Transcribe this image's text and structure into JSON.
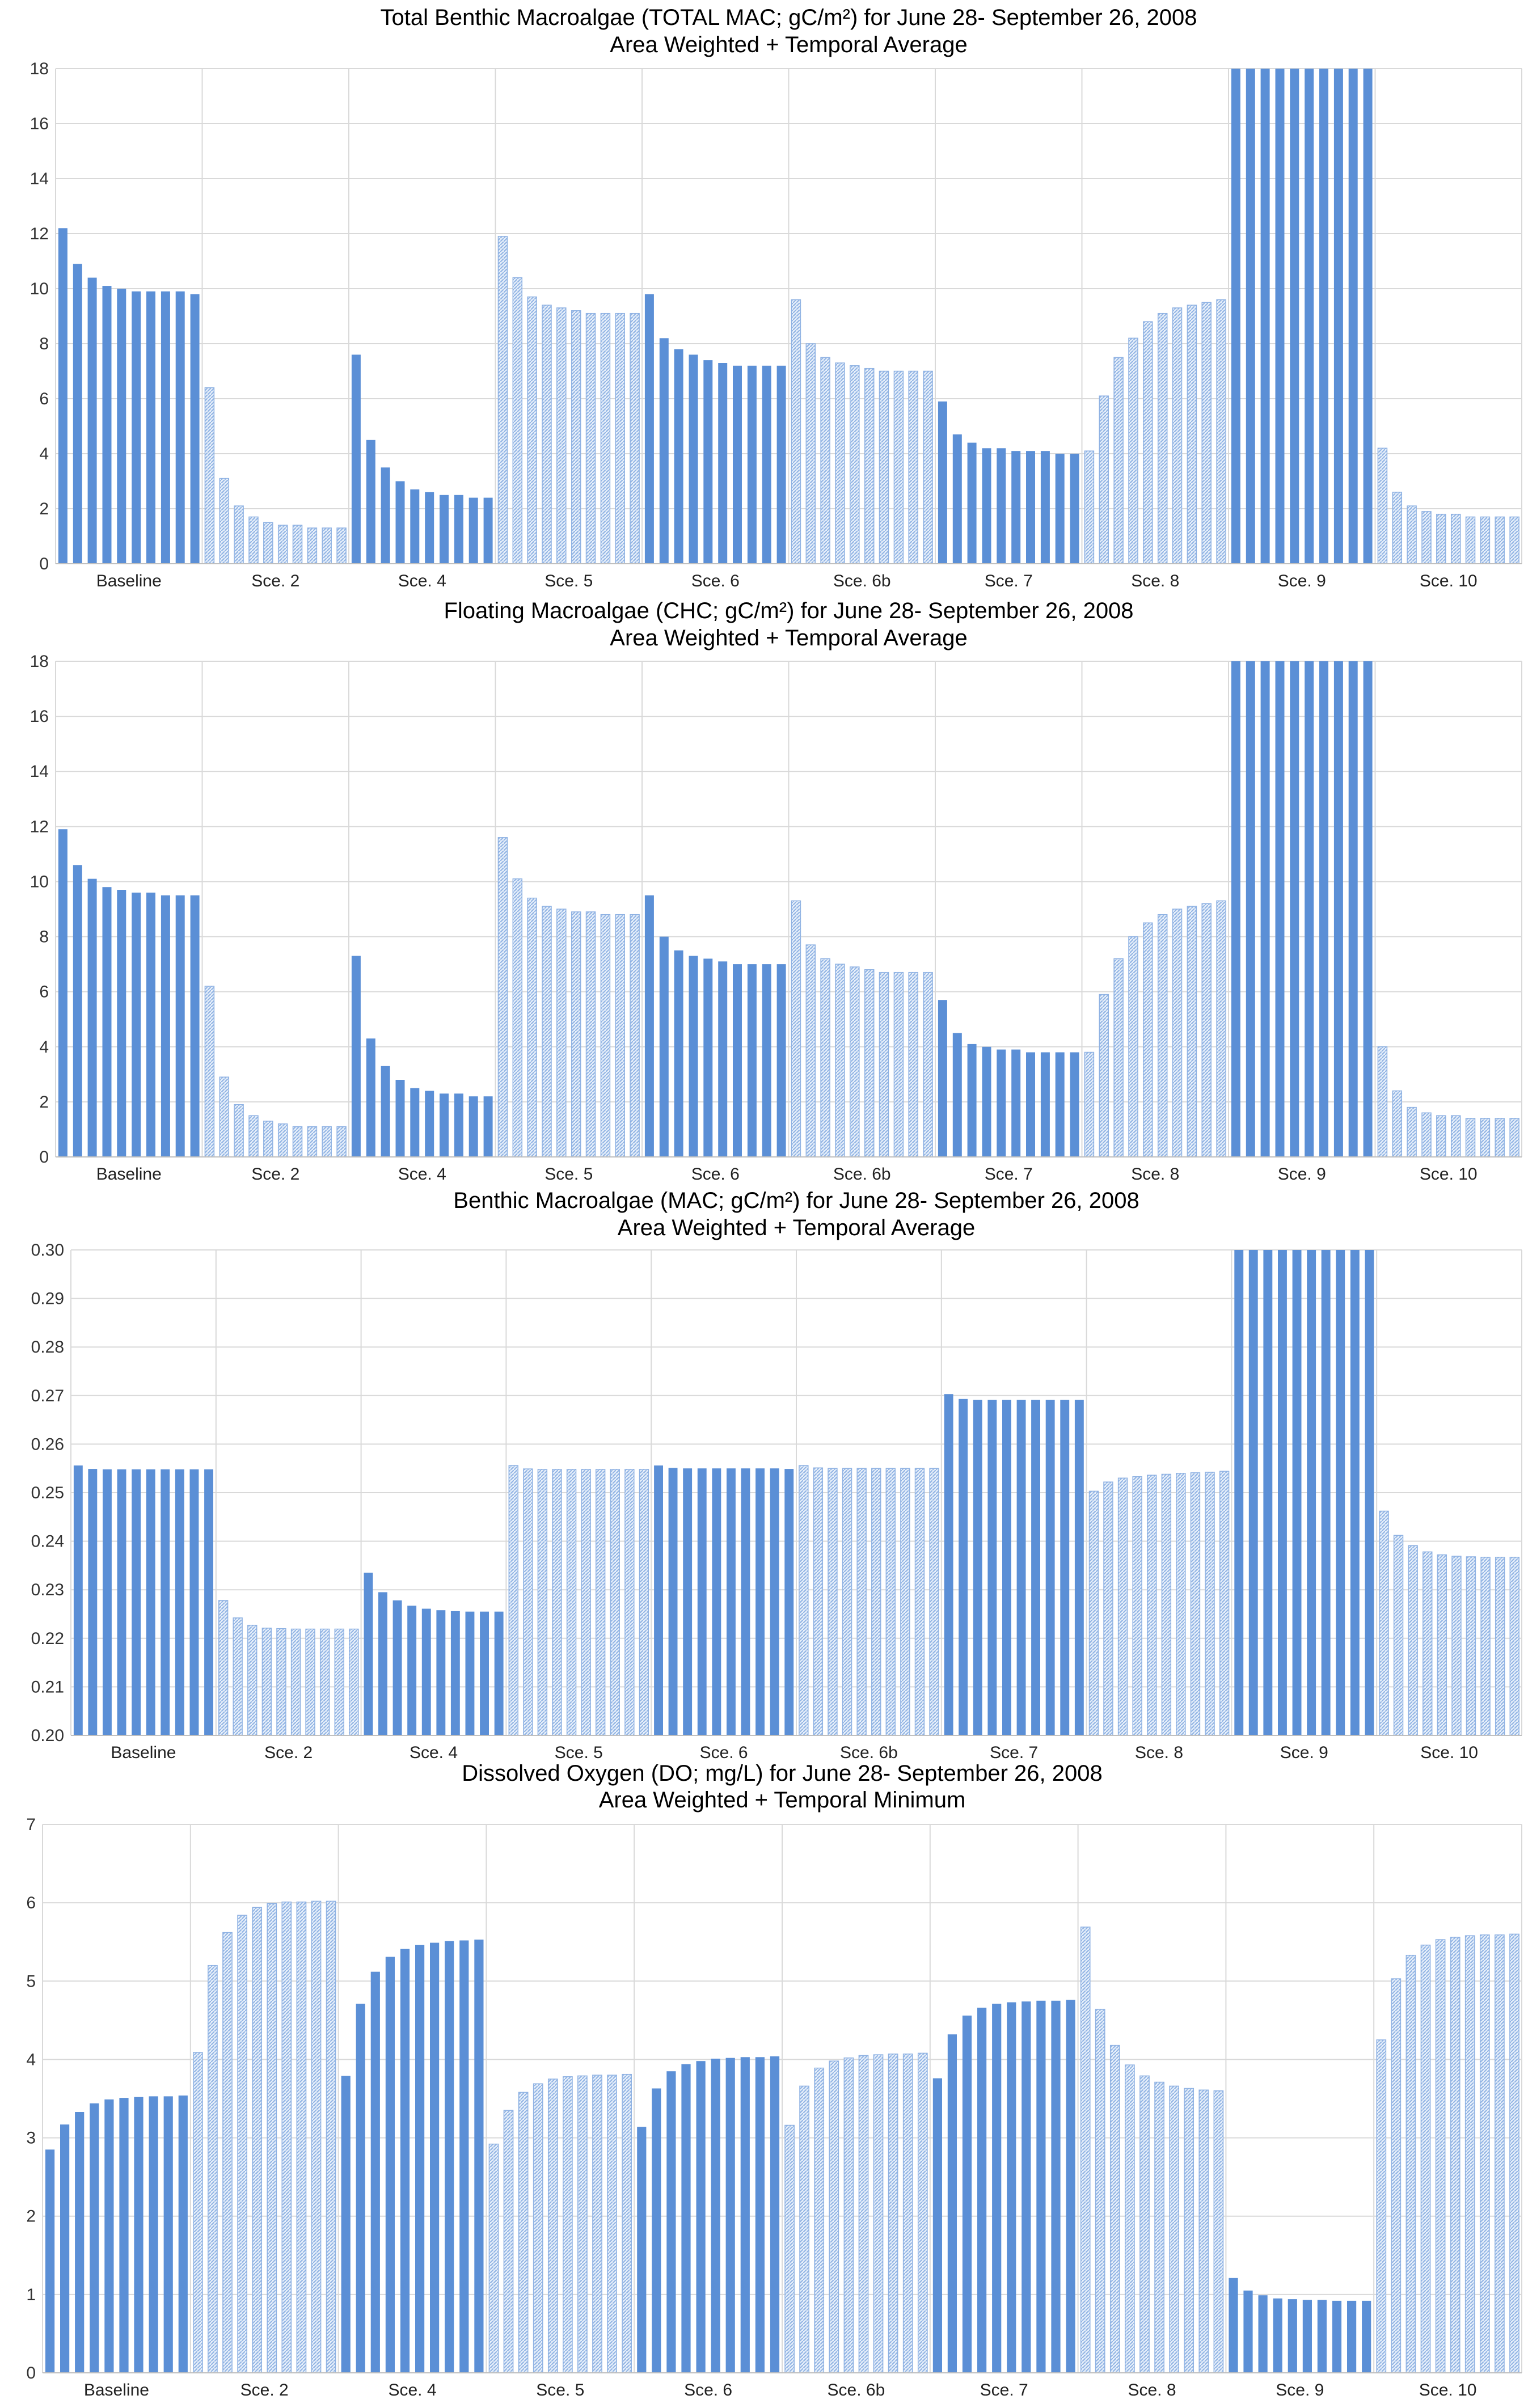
{
  "colors": {
    "solid": "#5b8fd6",
    "hatch": "#a9c6ec",
    "hatch_bg": "#e6effa",
    "grid": "#d9d9d9",
    "axis": "#bfbfbf"
  },
  "chart_data": [
    {
      "type": "bar",
      "title": "Total Benthic Macroalgae (TOTAL MAC; gC/m²) for June 28- September 26, 2008",
      "subtitle": "Area Weighted + Temporal Average",
      "ylim": [
        0,
        18
      ],
      "yticks": [
        "0",
        "2",
        "4",
        "6",
        "8",
        "10",
        "12",
        "14",
        "16",
        "18"
      ],
      "categories": [
        "Baseline",
        "Sce. 2",
        "Sce. 4",
        "Sce. 5",
        "Sce. 6",
        "Sce. 6b",
        "Sce. 7",
        "Sce. 8",
        "Sce. 9",
        "Sce. 10"
      ],
      "patterns": [
        "solid",
        "hatch",
        "solid",
        "hatch",
        "solid",
        "hatch",
        "solid",
        "hatch",
        "solid",
        "hatch"
      ],
      "groups": [
        [
          12.2,
          10.9,
          10.4,
          10.1,
          10.0,
          9.9,
          9.9,
          9.9,
          9.9,
          9.8
        ],
        [
          6.4,
          3.1,
          2.1,
          1.7,
          1.5,
          1.4,
          1.4,
          1.3,
          1.3,
          1.3
        ],
        [
          7.6,
          4.5,
          3.5,
          3.0,
          2.7,
          2.6,
          2.5,
          2.5,
          2.4,
          2.4
        ],
        [
          11.9,
          10.4,
          9.7,
          9.4,
          9.3,
          9.2,
          9.1,
          9.1,
          9.1,
          9.1
        ],
        [
          9.8,
          8.2,
          7.8,
          7.6,
          7.4,
          7.3,
          7.2,
          7.2,
          7.2,
          7.2
        ],
        [
          9.6,
          8.0,
          7.5,
          7.3,
          7.2,
          7.1,
          7.0,
          7.0,
          7.0,
          7.0
        ],
        [
          5.9,
          4.7,
          4.4,
          4.2,
          4.2,
          4.1,
          4.1,
          4.1,
          4.0,
          4.0
        ],
        [
          4.1,
          6.1,
          7.5,
          8.2,
          8.8,
          9.1,
          9.3,
          9.4,
          9.5,
          9.6
        ],
        [
          18,
          18,
          18,
          18,
          18,
          18,
          18,
          18,
          18,
          18
        ],
        [
          4.2,
          2.6,
          2.1,
          1.9,
          1.8,
          1.8,
          1.7,
          1.7,
          1.7,
          1.7
        ]
      ]
    },
    {
      "type": "bar",
      "title": "Floating Macroalgae (CHC; gC/m²) for June 28- September 26, 2008",
      "subtitle": "Area Weighted + Temporal Average",
      "ylim": [
        0,
        18
      ],
      "yticks": [
        "0",
        "2",
        "4",
        "6",
        "8",
        "10",
        "12",
        "14",
        "16",
        "18"
      ],
      "categories": [
        "Baseline",
        "Sce. 2",
        "Sce. 4",
        "Sce. 5",
        "Sce. 6",
        "Sce. 6b",
        "Sce. 7",
        "Sce. 8",
        "Sce. 9",
        "Sce. 10"
      ],
      "patterns": [
        "solid",
        "hatch",
        "solid",
        "hatch",
        "solid",
        "hatch",
        "solid",
        "hatch",
        "solid",
        "hatch"
      ],
      "groups": [
        [
          11.9,
          10.6,
          10.1,
          9.8,
          9.7,
          9.6,
          9.6,
          9.5,
          9.5,
          9.5
        ],
        [
          6.2,
          2.9,
          1.9,
          1.5,
          1.3,
          1.2,
          1.1,
          1.1,
          1.1,
          1.1
        ],
        [
          7.3,
          4.3,
          3.3,
          2.8,
          2.5,
          2.4,
          2.3,
          2.3,
          2.2,
          2.2
        ],
        [
          11.6,
          10.1,
          9.4,
          9.1,
          9.0,
          8.9,
          8.9,
          8.8,
          8.8,
          8.8
        ],
        [
          9.5,
          8.0,
          7.5,
          7.3,
          7.2,
          7.1,
          7.0,
          7.0,
          7.0,
          7.0
        ],
        [
          9.3,
          7.7,
          7.2,
          7.0,
          6.9,
          6.8,
          6.7,
          6.7,
          6.7,
          6.7
        ],
        [
          5.7,
          4.5,
          4.1,
          4.0,
          3.9,
          3.9,
          3.8,
          3.8,
          3.8,
          3.8
        ],
        [
          3.8,
          5.9,
          7.2,
          8.0,
          8.5,
          8.8,
          9.0,
          9.1,
          9.2,
          9.3
        ],
        [
          18,
          18,
          18,
          18,
          18,
          18,
          18,
          18,
          18,
          18
        ],
        [
          4.0,
          2.4,
          1.8,
          1.6,
          1.5,
          1.5,
          1.4,
          1.4,
          1.4,
          1.4
        ]
      ]
    },
    {
      "type": "bar",
      "title": "Benthic Macroalgae (MAC; gC/m²) for June 28- September 26, 2008",
      "subtitle": "Area Weighted + Temporal Average",
      "ylim": [
        0.2,
        0.3
      ],
      "yticks": [
        "0.20",
        "0.21",
        "0.22",
        "0.23",
        "0.24",
        "0.25",
        "0.26",
        "0.27",
        "0.28",
        "0.29",
        "0.30"
      ],
      "categories": [
        "Baseline",
        "Sce. 2",
        "Sce. 4",
        "Sce. 5",
        "Sce. 6",
        "Sce. 6b",
        "Sce. 7",
        "Sce. 8",
        "Sce. 9",
        "Sce. 10"
      ],
      "patterns": [
        "solid",
        "hatch",
        "solid",
        "hatch",
        "solid",
        "hatch",
        "solid",
        "hatch",
        "solid",
        "hatch"
      ],
      "groups": [
        [
          0.2556,
          0.2549,
          0.2548,
          0.2548,
          0.2548,
          0.2548,
          0.2548,
          0.2548,
          0.2548,
          0.2548
        ],
        [
          0.2278,
          0.2242,
          0.2227,
          0.2221,
          0.222,
          0.2219,
          0.2219,
          0.2219,
          0.2219,
          0.2219
        ],
        [
          0.2335,
          0.2295,
          0.2278,
          0.2267,
          0.2261,
          0.2258,
          0.2256,
          0.2255,
          0.2255,
          0.2255
        ],
        [
          0.2556,
          0.2549,
          0.2548,
          0.2548,
          0.2548,
          0.2548,
          0.2548,
          0.2548,
          0.2548,
          0.2548
        ],
        [
          0.2556,
          0.2551,
          0.255,
          0.255,
          0.255,
          0.255,
          0.255,
          0.255,
          0.255,
          0.2549
        ],
        [
          0.2556,
          0.2551,
          0.255,
          0.255,
          0.255,
          0.255,
          0.255,
          0.255,
          0.255,
          0.255
        ],
        [
          0.2703,
          0.2693,
          0.2691,
          0.2691,
          0.2691,
          0.2691,
          0.2691,
          0.2691,
          0.2691,
          0.2691
        ],
        [
          0.2503,
          0.2522,
          0.253,
          0.2533,
          0.2536,
          0.2538,
          0.254,
          0.2541,
          0.2542,
          0.2544
        ],
        [
          0.3,
          0.3,
          0.3,
          0.3,
          0.3,
          0.3,
          0.3,
          0.3,
          0.3,
          0.3
        ],
        [
          0.2462,
          0.2412,
          0.2391,
          0.2378,
          0.2372,
          0.2369,
          0.2368,
          0.2367,
          0.2367,
          0.2367
        ]
      ]
    },
    {
      "type": "bar",
      "title": "Dissolved Oxygen (DO; mg/L) for June 28- September 26, 2008",
      "subtitle": "Area Weighted + Temporal Minimum",
      "ylim": [
        0,
        7
      ],
      "yticks": [
        "0",
        "1",
        "2",
        "3",
        "4",
        "5",
        "6",
        "7"
      ],
      "categories": [
        "Baseline",
        "Sce. 2",
        "Sce. 4",
        "Sce. 5",
        "Sce. 6",
        "Sce. 6b",
        "Sce. 7",
        "Sce. 8",
        "Sce. 9",
        "Sce. 10"
      ],
      "patterns": [
        "solid",
        "hatch",
        "solid",
        "hatch",
        "solid",
        "hatch",
        "solid",
        "hatch",
        "solid",
        "hatch"
      ],
      "groups": [
        [
          2.85,
          3.17,
          3.33,
          3.44,
          3.49,
          3.51,
          3.52,
          3.53,
          3.53,
          3.54
        ],
        [
          4.09,
          5.2,
          5.62,
          5.84,
          5.94,
          5.99,
          6.01,
          6.01,
          6.02,
          6.02
        ],
        [
          3.79,
          4.71,
          5.12,
          5.31,
          5.41,
          5.46,
          5.49,
          5.51,
          5.52,
          5.53
        ],
        [
          2.92,
          3.35,
          3.58,
          3.69,
          3.75,
          3.78,
          3.79,
          3.8,
          3.8,
          3.81
        ],
        [
          3.14,
          3.63,
          3.85,
          3.94,
          3.98,
          4.01,
          4.02,
          4.03,
          4.03,
          4.04
        ],
        [
          3.16,
          3.66,
          3.89,
          3.98,
          4.02,
          4.05,
          4.06,
          4.07,
          4.07,
          4.08
        ],
        [
          3.76,
          4.32,
          4.56,
          4.66,
          4.71,
          4.73,
          4.74,
          4.75,
          4.75,
          4.76
        ],
        [
          5.69,
          4.64,
          4.18,
          3.93,
          3.79,
          3.71,
          3.66,
          3.63,
          3.61,
          3.6
        ],
        [
          1.21,
          1.05,
          0.99,
          0.95,
          0.94,
          0.93,
          0.93,
          0.92,
          0.92,
          0.92
        ],
        [
          4.25,
          5.03,
          5.33,
          5.46,
          5.53,
          5.56,
          5.58,
          5.59,
          5.59,
          5.6
        ]
      ]
    }
  ]
}
